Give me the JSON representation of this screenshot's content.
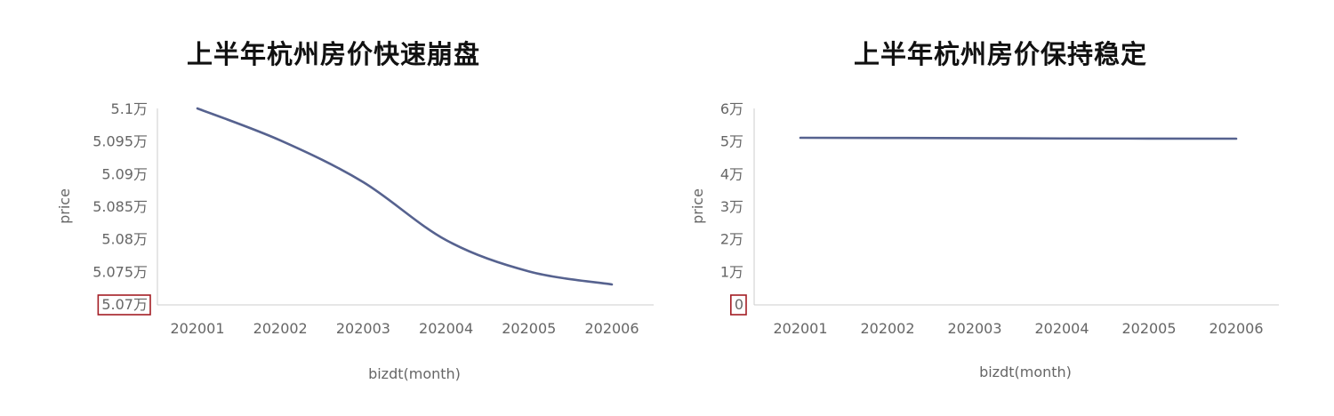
{
  "colors": {
    "series": "#56628f",
    "axis": "#cccccc",
    "highlight_box": "#a31d24",
    "text": "#666666"
  },
  "chart_data": [
    {
      "type": "line",
      "title": "上半年杭州房价快速崩盘",
      "xlabel": "bizdt(month)",
      "ylabel": "price",
      "categories": [
        "202001",
        "202002",
        "202003",
        "202004",
        "202005",
        "202006"
      ],
      "series": [
        {
          "values": [
            51000,
            50951,
            50887,
            50798,
            50750,
            50730
          ]
        }
      ],
      "ylim": [
        50700,
        51000
      ],
      "y_ticks": [
        "5.07万",
        "5.075万",
        "5.08万",
        "5.085万",
        "5.09万",
        "5.095万",
        "5.1万"
      ],
      "highlighted_tick": "5.07万",
      "smooth": true,
      "grid": false
    },
    {
      "type": "line",
      "title": "上半年杭州房价保持稳定",
      "xlabel": "bizdt(month)",
      "ylabel": "price",
      "categories": [
        "202001",
        "202002",
        "202003",
        "202004",
        "202005",
        "202006"
      ],
      "series": [
        {
          "values": [
            51000,
            50951,
            50887,
            50798,
            50750,
            50730
          ]
        }
      ],
      "ylim": [
        0,
        60000
      ],
      "y_ticks": [
        "0",
        "1万",
        "2万",
        "3万",
        "4万",
        "5万",
        "6万"
      ],
      "highlighted_tick": "0",
      "smooth": false,
      "grid": false
    }
  ]
}
